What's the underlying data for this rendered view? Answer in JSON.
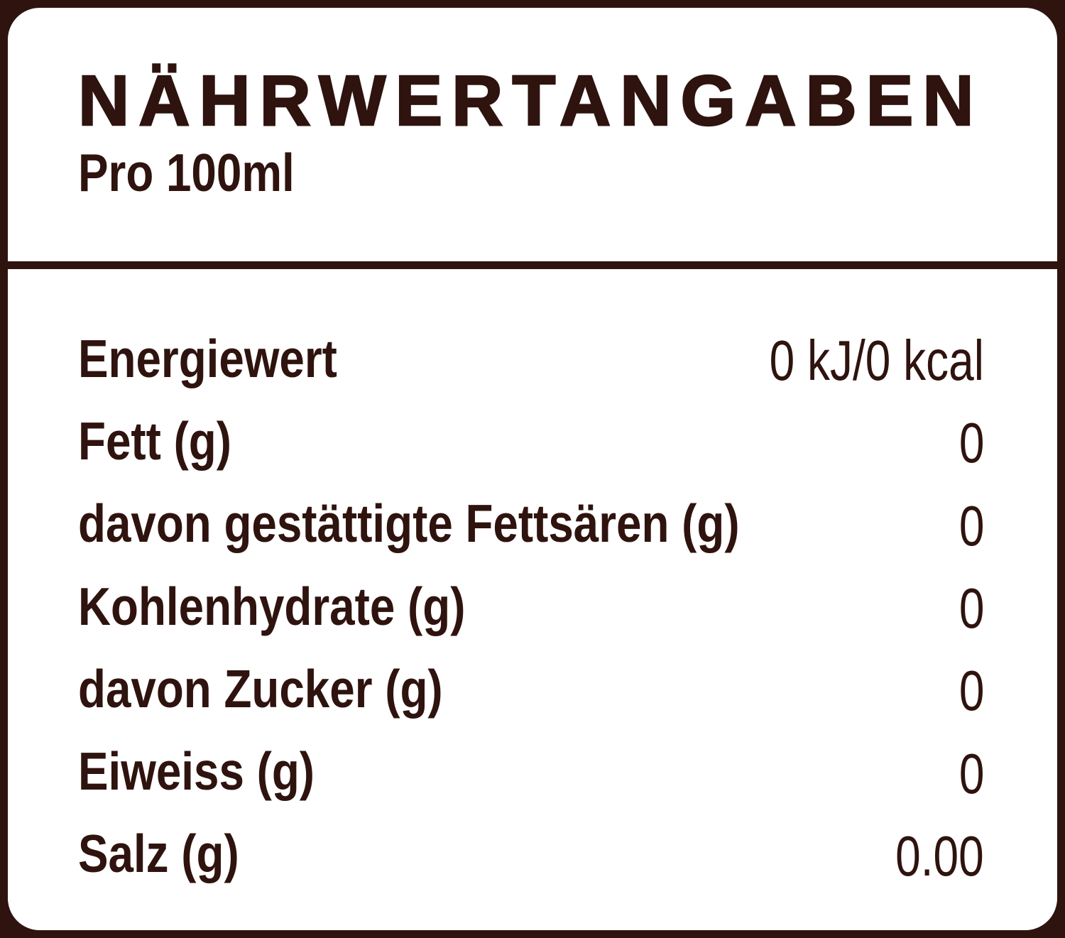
{
  "label": {
    "title": "NÄHRWERTANGABEN",
    "serving": "Pro 100ml",
    "rows": [
      {
        "name": "Energiewert",
        "value": "0 kJ/0 kcal"
      },
      {
        "name": "Fett (g)",
        "value": "0"
      },
      {
        "name": "davon gestättigte Fettsären (g)",
        "value": "0"
      },
      {
        "name": "Kohlenhydrate (g)",
        "value": "0"
      },
      {
        "name": "davon Zucker (g)",
        "value": "0"
      },
      {
        "name": "Eiweiss (g)",
        "value": "0"
      },
      {
        "name": "Salz (g)",
        "value": "0.00"
      }
    ],
    "colors": {
      "ink": "#2f130e",
      "background": "#ffffff"
    }
  }
}
